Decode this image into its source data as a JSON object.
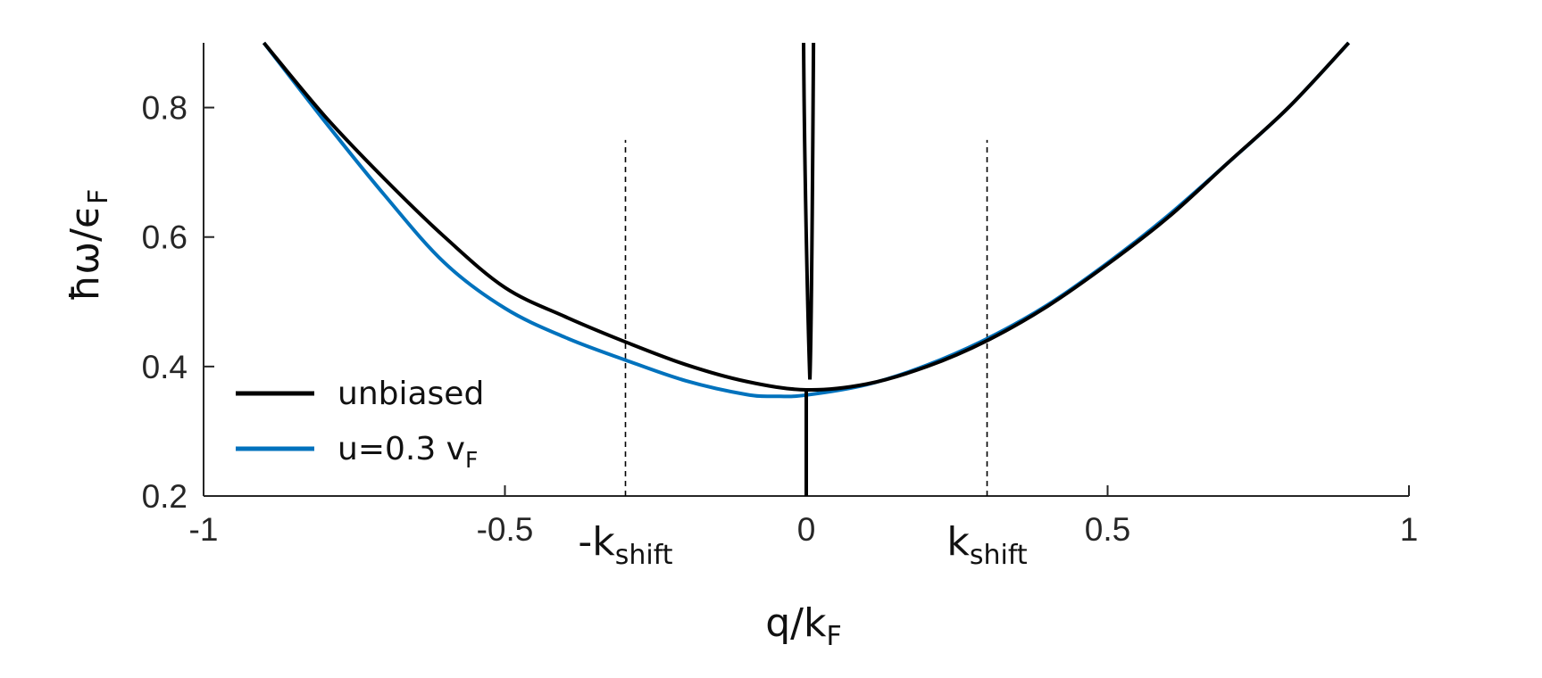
{
  "chart_data": {
    "type": "line",
    "xlabel": {
      "main": "q/k",
      "sub": "F"
    },
    "ylabel": {
      "main": "ħω/ϵ",
      "sub": "F"
    },
    "xlim": [
      -1,
      1
    ],
    "ylim": [
      0.2,
      0.9
    ],
    "xticks": [
      -1,
      -0.5,
      0,
      0.5,
      1
    ],
    "xtick_labels": [
      "-1",
      "-0.5",
      "0",
      "0.5",
      "1"
    ],
    "yticks": [
      0.2,
      0.4,
      0.6,
      0.8
    ],
    "ytick_labels": [
      "0.2",
      "0.4",
      "0.6",
      "0.8"
    ],
    "grid": false,
    "legend_position": "bottom-left",
    "series": [
      {
        "name": "unbiased",
        "color": "#000000",
        "x": [
          -0.9,
          -0.8,
          -0.7,
          -0.6,
          -0.5,
          -0.4,
          -0.3,
          -0.2,
          -0.1,
          0.0,
          0.1,
          0.2,
          0.3,
          0.4,
          0.5,
          0.6,
          0.7,
          0.8,
          0.9
        ],
        "y": [
          0.9,
          0.788,
          0.69,
          0.6,
          0.522,
          0.477,
          0.438,
          0.403,
          0.377,
          0.364,
          0.373,
          0.4,
          0.44,
          0.493,
          0.558,
          0.63,
          0.715,
          0.8,
          0.9
        ]
      },
      {
        "name": "u=0.3 v",
        "name_sub": "F",
        "color": "#0072BD",
        "x": [
          -0.9,
          -0.8,
          -0.7,
          -0.6,
          -0.5,
          -0.4,
          -0.3,
          -0.2,
          -0.1,
          -0.05,
          0.0,
          0.1,
          0.2,
          0.3,
          0.4,
          0.5,
          0.6,
          0.7,
          0.8,
          0.9
        ],
        "y": [
          0.9,
          0.78,
          0.665,
          0.56,
          0.49,
          0.445,
          0.41,
          0.378,
          0.357,
          0.354,
          0.356,
          0.372,
          0.402,
          0.443,
          0.495,
          0.56,
          0.633,
          0.715,
          0.8,
          0.9
        ]
      }
    ],
    "vertical_lines": [
      {
        "x": -0.3,
        "ymax": 0.75,
        "style": "dashed",
        "label_main": "-k",
        "label_sub": "shift"
      },
      {
        "x": 0.3,
        "ymax": 0.75,
        "style": "dashed",
        "label_main": "k",
        "label_sub": "shift"
      }
    ],
    "center_spike": {
      "color": "#000000",
      "upper_branch": {
        "x_left": 0.0,
        "x_right": 0.012,
        "y_min": 0.38,
        "y_max": 0.9
      },
      "lower_branch": {
        "x": 0.0,
        "y_min": 0.2,
        "y_max": 0.362
      }
    }
  }
}
